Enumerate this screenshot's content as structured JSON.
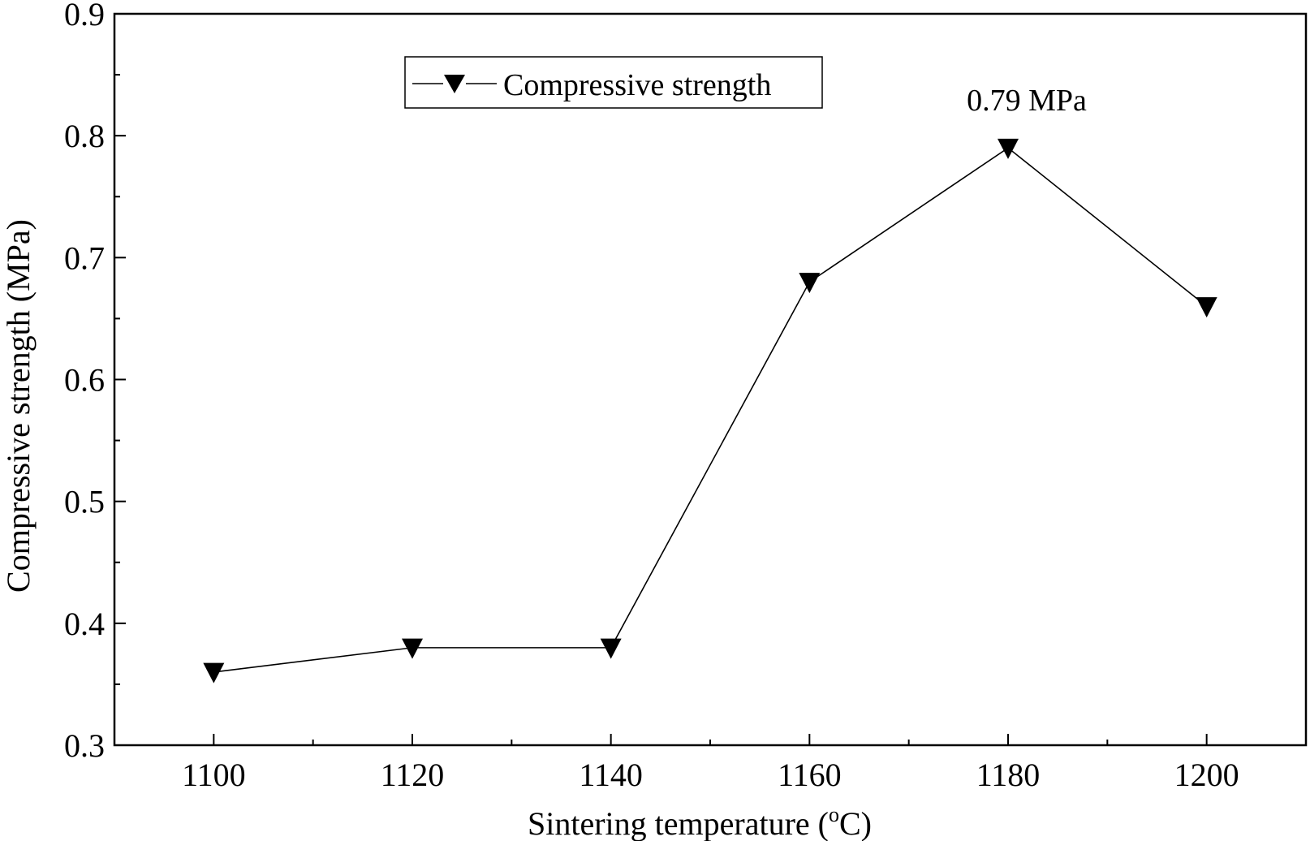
{
  "chart_data": {
    "type": "line",
    "xlabel": "Sintering temperature (",
    "xlabel_sup": "o",
    "xlabel_unit": "C)",
    "ylabel": "Compressive strength (MPa)",
    "xlim": [
      1090,
      1210
    ],
    "ylim": [
      0.3,
      0.9
    ],
    "x_ticks": [
      1100,
      1120,
      1140,
      1160,
      1180,
      1200
    ],
    "y_ticks": [
      "0.3",
      "0.4",
      "0.5",
      "0.6",
      "0.7",
      "0.8",
      "0.9"
    ],
    "x": [
      1100,
      1120,
      1140,
      1160,
      1180,
      1200
    ],
    "series": [
      {
        "name": "Compressive strength",
        "values": [
          0.36,
          0.38,
          0.38,
          0.68,
          0.79,
          0.66
        ],
        "marker": "triangle-down",
        "color": "#000000"
      }
    ],
    "annotations": [
      {
        "text": "0.79 MPa",
        "x": 1180,
        "y": 0.79
      }
    ],
    "legend_position": "top-left",
    "grid": false
  }
}
